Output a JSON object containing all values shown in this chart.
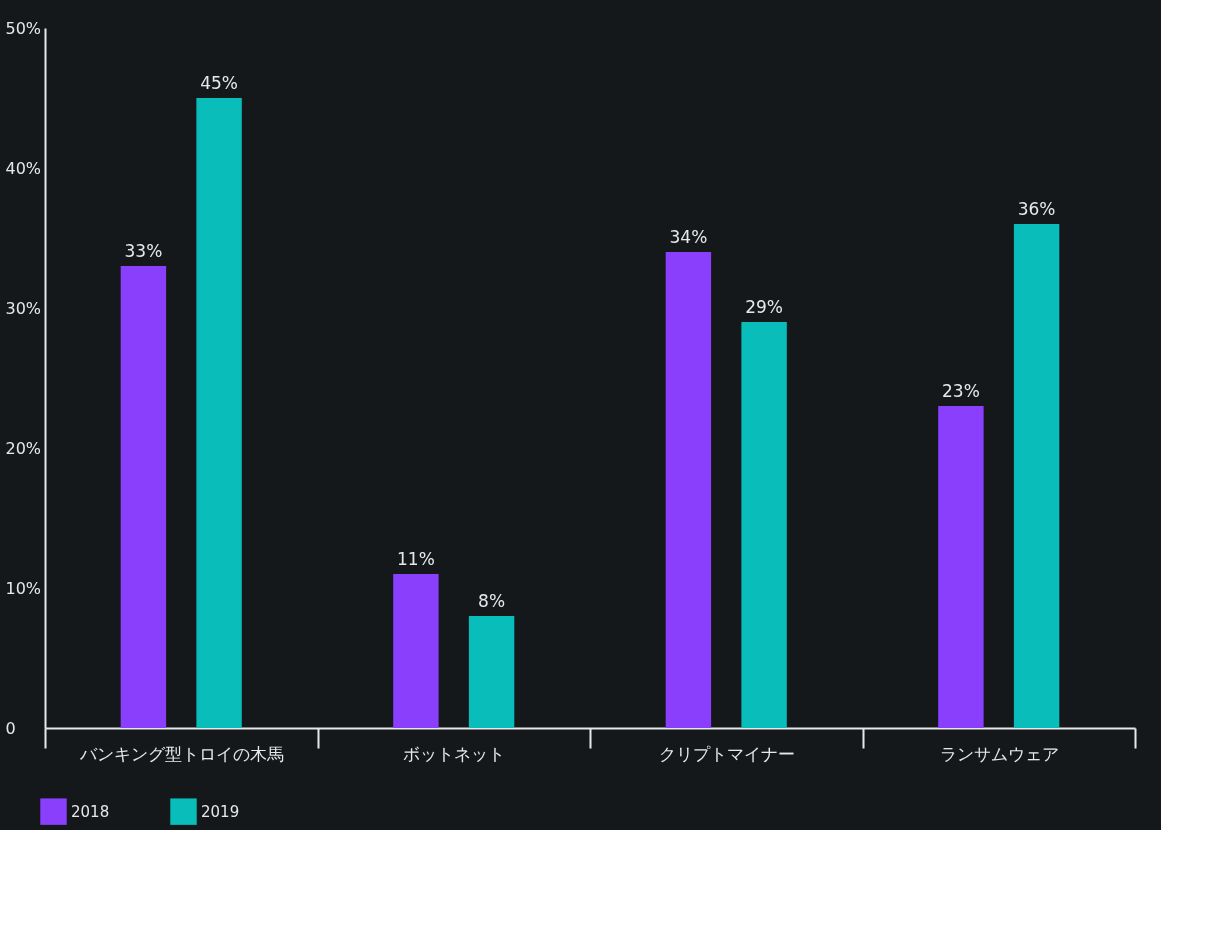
{
  "chart_data": {
    "type": "bar",
    "categories": [
      "バンキング型トロイの木馬",
      "ボットネット",
      "クリプトマイナー",
      "ランサムウェア"
    ],
    "series": [
      {
        "name": "2018",
        "color": "#8a3ffc",
        "values": [
          33,
          11,
          34,
          23
        ],
        "value_labels": [
          "33%",
          "11%",
          "34%",
          "23%"
        ]
      },
      {
        "name": "2019",
        "color": "#08bdba",
        "values": [
          45,
          8,
          29,
          36
        ],
        "value_labels": [
          "45%",
          "8%",
          "29%",
          "36%"
        ]
      }
    ],
    "ylim": [
      0,
      50
    ],
    "yticks": [
      0,
      {
        "value": 10,
        "label": "10%"
      },
      {
        "value": 20,
        "label": "20%"
      },
      {
        "value": 30,
        "label": "30%"
      },
      {
        "value": 40,
        "label": "40%"
      },
      {
        "value": 50,
        "label": "50%"
      }
    ],
    "grid": false,
    "legend": "bottom left"
  }
}
